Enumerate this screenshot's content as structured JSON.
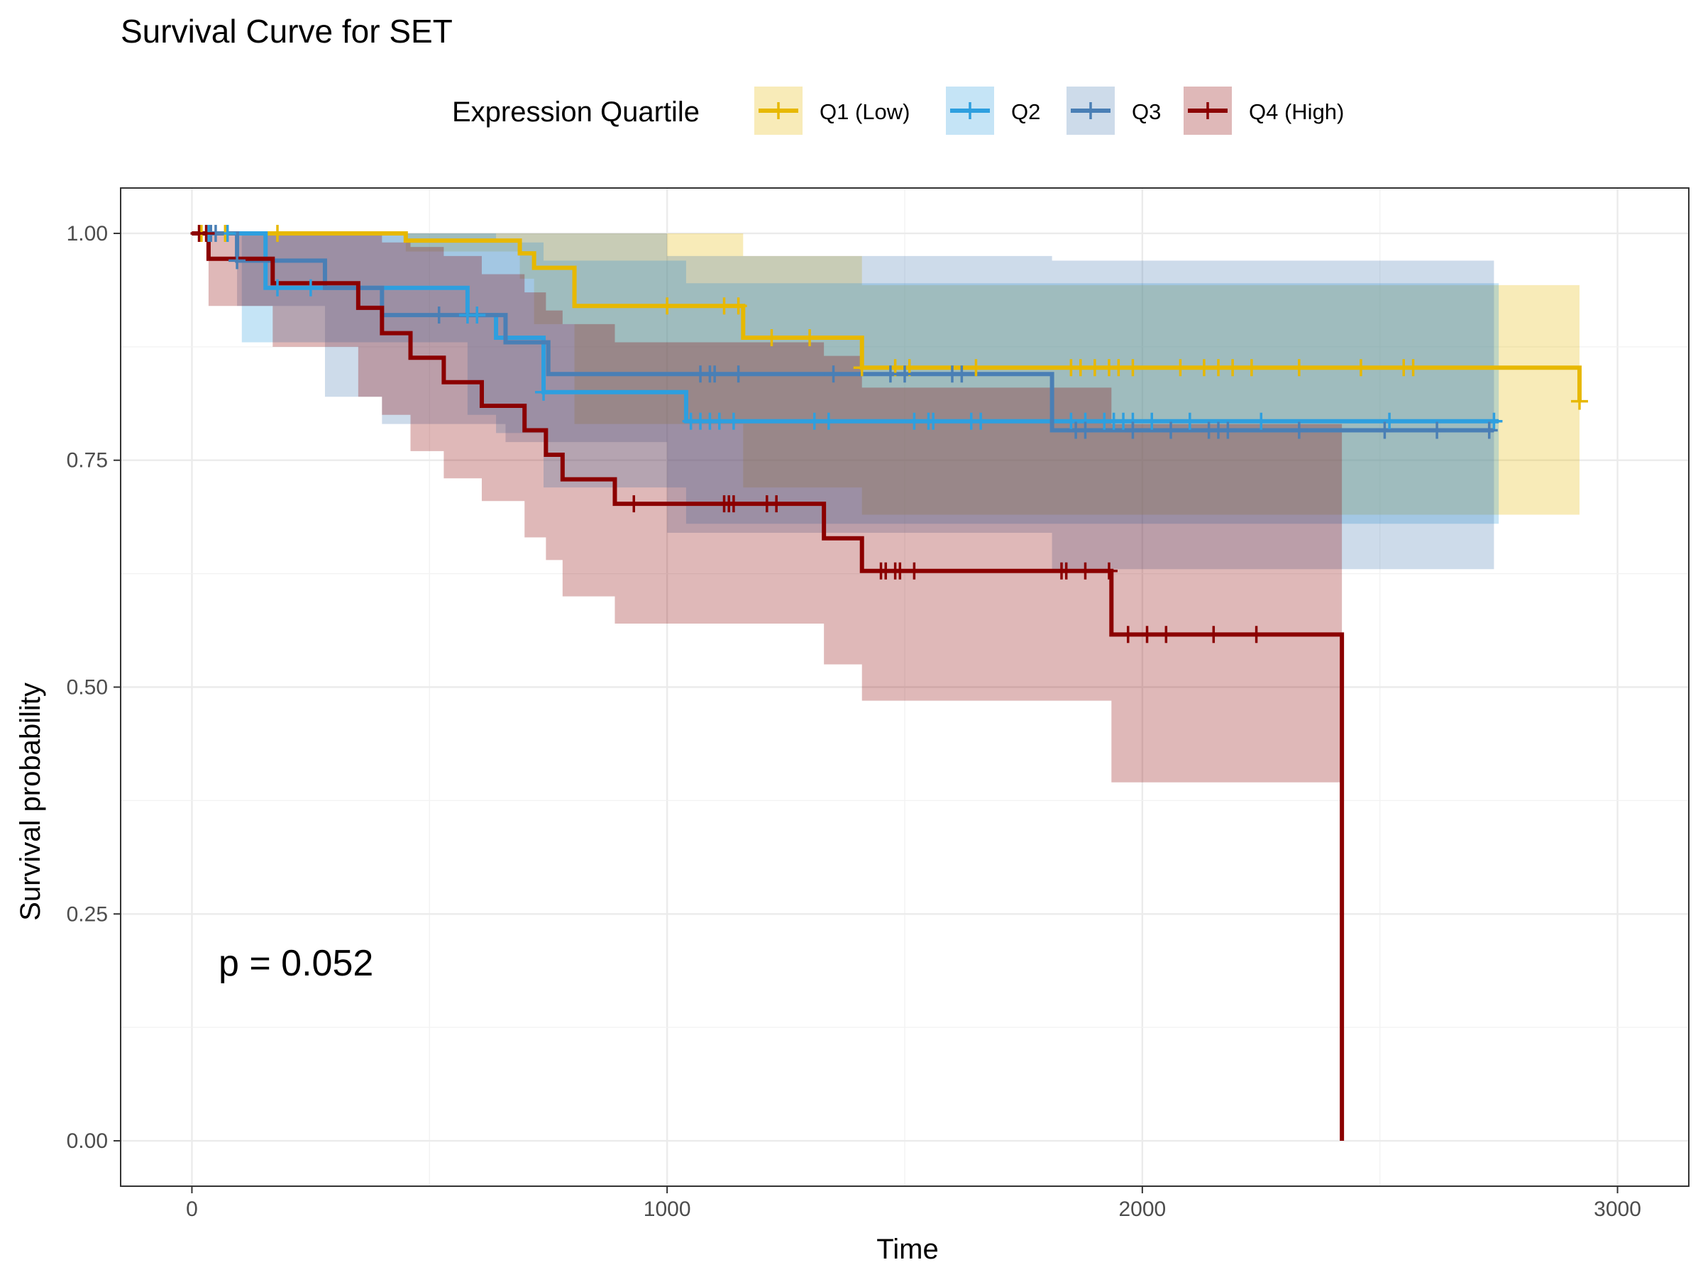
{
  "chart_data": {
    "type": "line",
    "subtype": "kaplan-meier survival curve with confidence bands",
    "title": "Survival Curve for SET",
    "xlabel": "Time",
    "ylabel": "Survival probability",
    "xlim": [
      -150,
      3150
    ],
    "ylim": [
      -0.05,
      1.05
    ],
    "xticks": [
      0,
      1000,
      2000,
      3000
    ],
    "xtick_labels": [
      "0",
      "1000",
      "2000",
      "3000"
    ],
    "yticks": [
      0,
      0.25,
      0.5,
      0.75,
      1
    ],
    "ytick_labels": [
      "0.00",
      "0.25",
      "0.50",
      "0.75",
      "1.00"
    ],
    "grid": true,
    "legend": {
      "title": "Expression Quartile",
      "placement": "top",
      "entries": [
        "Q1 (Low)",
        "Q2",
        "Q3",
        "Q4 (High)"
      ]
    },
    "annotation": "p = 0.052",
    "series": [
      {
        "name": "Q1 (Low)",
        "color": "#E7B800",
        "steps": [
          [
            0,
            1.0
          ],
          [
            450,
            0.992
          ],
          [
            690,
            0.978
          ],
          [
            720,
            0.962
          ],
          [
            805,
            0.92
          ],
          [
            1160,
            0.885
          ],
          [
            1410,
            0.852
          ],
          [
            2920,
            0.815
          ]
        ],
        "end_x": 2920,
        "ci_lower": [
          [
            0,
            1.0
          ],
          [
            450,
            0.98
          ],
          [
            690,
            0.95
          ],
          [
            720,
            0.9
          ],
          [
            805,
            0.79
          ],
          [
            1160,
            0.72
          ],
          [
            1410,
            0.69
          ],
          [
            2920,
            0.69
          ]
        ],
        "ci_upper": [
          [
            0,
            1.0
          ],
          [
            450,
            1.0
          ],
          [
            690,
            1.0
          ],
          [
            720,
            1.0
          ],
          [
            805,
            1.0
          ],
          [
            1160,
            0.975
          ],
          [
            1410,
            0.943
          ],
          [
            2920,
            0.962
          ]
        ],
        "censor_x": [
          20,
          70,
          180,
          1000,
          1120,
          1150,
          1220,
          1300,
          1410,
          1480,
          1510,
          1650,
          1850,
          1870,
          1900,
          1930,
          1950,
          1980,
          2080,
          2130,
          2160,
          2190,
          2230,
          2330,
          2460,
          2550,
          2570,
          2920
        ]
      },
      {
        "name": "Q2",
        "color": "#2E9FDF",
        "steps": [
          [
            0,
            1.0
          ],
          [
            155,
            0.94
          ],
          [
            580,
            0.91
          ],
          [
            640,
            0.885
          ],
          [
            740,
            0.825
          ],
          [
            1040,
            0.793
          ],
          [
            1380,
            0.793
          ],
          [
            2750,
            0.793
          ]
        ],
        "end_x": 2750,
        "ci_lower": [
          [
            0,
            1.0
          ],
          [
            105,
            0.88
          ],
          [
            580,
            0.8
          ],
          [
            640,
            0.78
          ],
          [
            740,
            0.72
          ],
          [
            1040,
            0.68
          ],
          [
            2750,
            0.68
          ]
        ],
        "ci_upper": [
          [
            0,
            1.0
          ],
          [
            155,
            1.0
          ],
          [
            580,
            1.0
          ],
          [
            640,
            0.99
          ],
          [
            740,
            0.97
          ],
          [
            1040,
            0.945
          ],
          [
            2750,
            0.945
          ]
        ],
        "censor_x": [
          35,
          75,
          180,
          250,
          580,
          600,
          740,
          1050,
          1070,
          1090,
          1110,
          1140,
          1310,
          1340,
          1520,
          1550,
          1560,
          1640,
          1660,
          1850,
          1880,
          1920,
          1940,
          1960,
          1980,
          2020,
          2100,
          2250,
          2520,
          2740
        ]
      },
      {
        "name": "Q3",
        "color": "#4A7FB5",
        "steps": [
          [
            0,
            1.0
          ],
          [
            95,
            0.97
          ],
          [
            280,
            0.94
          ],
          [
            400,
            0.91
          ],
          [
            660,
            0.88
          ],
          [
            750,
            0.845
          ],
          [
            1000,
            0.845
          ],
          [
            1810,
            0.783
          ],
          [
            2740,
            0.783
          ]
        ],
        "end_x": 2740,
        "ci_lower": [
          [
            0,
            1.0
          ],
          [
            95,
            0.92
          ],
          [
            280,
            0.82
          ],
          [
            400,
            0.79
          ],
          [
            660,
            0.77
          ],
          [
            1000,
            0.67
          ],
          [
            1810,
            0.63
          ],
          [
            2740,
            0.63
          ]
        ],
        "ci_upper": [
          [
            0,
            1.0
          ],
          [
            95,
            1.0
          ],
          [
            280,
            1.0
          ],
          [
            400,
            1.0
          ],
          [
            660,
            1.0
          ],
          [
            1000,
            0.975
          ],
          [
            1810,
            0.97
          ],
          [
            2740,
            0.97
          ]
        ],
        "censor_x": [
          40,
          50,
          95,
          520,
          1070,
          1090,
          1100,
          1150,
          1350,
          1470,
          1500,
          1600,
          1620,
          1860,
          1880,
          1980,
          2060,
          2140,
          2160,
          2180,
          2330,
          2510,
          2620,
          2730
        ]
      },
      {
        "name": "Q4 (High)",
        "color": "#8B0000",
        "steps": [
          [
            0,
            1.0
          ],
          [
            35,
            0.972
          ],
          [
            170,
            0.945
          ],
          [
            350,
            0.918
          ],
          [
            400,
            0.89
          ],
          [
            460,
            0.863
          ],
          [
            530,
            0.836
          ],
          [
            610,
            0.81
          ],
          [
            700,
            0.783
          ],
          [
            745,
            0.756
          ],
          [
            780,
            0.729
          ],
          [
            890,
            0.702
          ],
          [
            1330,
            0.664
          ],
          [
            1410,
            0.628
          ],
          [
            1935,
            0.558
          ],
          [
            2420,
            0.0
          ]
        ],
        "end_x": 2420,
        "ci_lower": [
          [
            0,
            1.0
          ],
          [
            35,
            0.92
          ],
          [
            170,
            0.875
          ],
          [
            350,
            0.82
          ],
          [
            400,
            0.8
          ],
          [
            460,
            0.76
          ],
          [
            530,
            0.73
          ],
          [
            610,
            0.705
          ],
          [
            700,
            0.665
          ],
          [
            745,
            0.64
          ],
          [
            780,
            0.6
          ],
          [
            890,
            0.57
          ],
          [
            1330,
            0.525
          ],
          [
            1410,
            0.485
          ],
          [
            1935,
            0.395
          ],
          [
            2420,
            0.395
          ]
        ],
        "ci_upper": [
          [
            0,
            1.0
          ],
          [
            35,
            1.0
          ],
          [
            170,
            1.0
          ],
          [
            350,
            1.0
          ],
          [
            400,
            0.99
          ],
          [
            460,
            0.985
          ],
          [
            530,
            0.975
          ],
          [
            610,
            0.955
          ],
          [
            700,
            0.935
          ],
          [
            745,
            0.915
          ],
          [
            780,
            0.9
          ],
          [
            890,
            0.88
          ],
          [
            1330,
            0.865
          ],
          [
            1410,
            0.83
          ],
          [
            1935,
            0.79
          ],
          [
            2420,
            0.79
          ]
        ],
        "censor_x": [
          15,
          30,
          930,
          1120,
          1130,
          1140,
          1210,
          1230,
          1450,
          1460,
          1480,
          1490,
          1520,
          1830,
          1840,
          1880,
          1930,
          1970,
          2010,
          2050,
          2150,
          2240
        ]
      }
    ]
  }
}
